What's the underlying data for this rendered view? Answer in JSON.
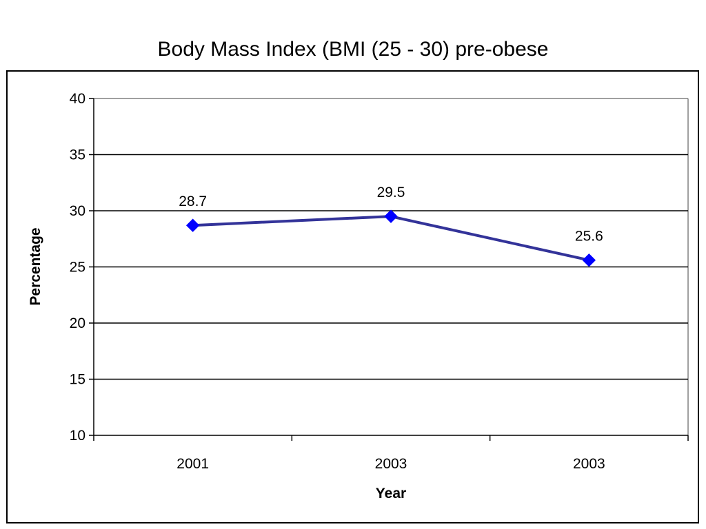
{
  "chart_data": {
    "type": "line",
    "title": "Body Mass Index (BMI (25 - 30) pre-obese",
    "xlabel": "Year",
    "ylabel": "Percentage",
    "categories": [
      "2001",
      "2003",
      "2003"
    ],
    "series": [
      {
        "values": [
          28.7,
          29.5,
          25.6
        ],
        "color": "#333399",
        "marker_color": "#0000FF",
        "marker": "diamond"
      }
    ],
    "data_labels": [
      "28.7",
      "29.5",
      "25.6"
    ],
    "ylim": [
      10,
      40
    ],
    "yticks": [
      10,
      15,
      20,
      25,
      30,
      35,
      40
    ],
    "ytick_labels": [
      "10",
      "15",
      "20",
      "25",
      "30",
      "35",
      "40"
    ],
    "grid": true,
    "legend": "none"
  }
}
